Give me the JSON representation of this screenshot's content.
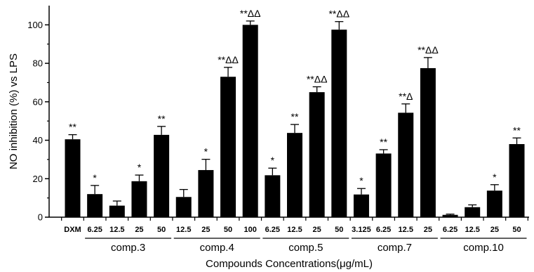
{
  "chart_data": {
    "type": "bar",
    "xlabel": "Compounds Concentrations(μg/mL)",
    "ylabel": "NO inhibition (%) vs LPS",
    "ylim": [
      0,
      110
    ],
    "yticks": [
      0,
      20,
      40,
      60,
      80,
      100
    ],
    "grid": false,
    "bar_color": "#000000",
    "categories": [
      "DXM",
      "6.25",
      "12.5",
      "25",
      "50",
      "12.5",
      "25",
      "50",
      "100",
      "6.25",
      "12.5",
      "25",
      "50",
      "3.125",
      "6.25",
      "12.5",
      "25",
      "6.25",
      "12.5",
      "25",
      "50"
    ],
    "values": [
      40.5,
      12,
      6,
      18.7,
      42.8,
      10.5,
      24.5,
      73,
      100,
      21.8,
      43.8,
      65,
      97.5,
      11.8,
      33.1,
      54.3,
      77.5,
      1.2,
      5.2,
      13.8,
      38
    ],
    "errors": [
      2.4,
      4.5,
      2.4,
      3.2,
      4.4,
      3.9,
      5.6,
      4.9,
      2.0,
      3.7,
      4.4,
      2.8,
      4.2,
      3.1,
      2.0,
      4.6,
      5.5,
      0.4,
      1.2,
      3.1,
      3.2
    ],
    "significance": [
      "**",
      "*",
      "",
      "*",
      "**",
      "",
      "*",
      "**ΔΔ",
      "**ΔΔ",
      "*",
      "**",
      "**ΔΔ",
      "**ΔΔ",
      "*",
      "**",
      "**Δ",
      "**ΔΔ",
      "",
      "",
      "*",
      "**"
    ],
    "groups": [
      {
        "label": "comp.3",
        "start": 1,
        "end": 4
      },
      {
        "label": "comp.4",
        "start": 5,
        "end": 8
      },
      {
        "label": "comp.5",
        "start": 9,
        "end": 12
      },
      {
        "label": "comp.7",
        "start": 13,
        "end": 16
      },
      {
        "label": "comp.10",
        "start": 17,
        "end": 20
      }
    ]
  }
}
